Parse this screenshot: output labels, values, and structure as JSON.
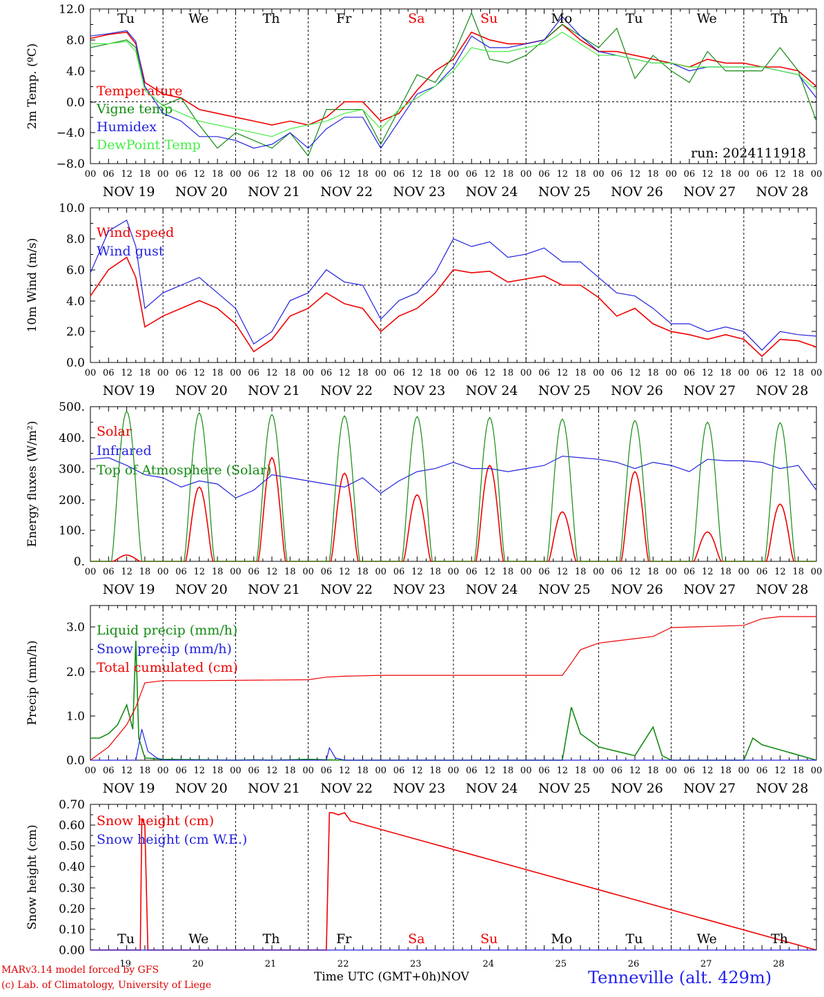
{
  "chart_data": [
    {
      "type": "line",
      "ylabel": "2m Temp. (ºC)",
      "ylim": [
        -8.0,
        12.0
      ],
      "yticks": [
        "12.0",
        "8.0",
        "4.0",
        "0.0",
        "−4.0",
        "−8.0"
      ],
      "reference_line": 0,
      "run_label": "run: 2024111918",
      "x_hours": [
        0,
        6,
        12,
        15,
        18,
        24,
        30,
        36,
        42,
        48,
        54,
        60,
        66,
        72,
        78,
        84,
        90,
        96,
        102,
        108,
        114,
        120,
        126,
        132,
        138,
        144,
        150,
        156,
        162,
        168,
        174,
        180,
        186,
        192,
        198,
        204,
        210,
        216,
        222,
        228,
        234,
        240
      ],
      "series": [
        {
          "name": "Temperature",
          "color": "#ee0000",
          "values": [
            8.2,
            8.7,
            9.0,
            7.5,
            2.5,
            1.0,
            0.5,
            -1.0,
            -1.5,
            -2.0,
            -2.5,
            -3.0,
            -2.5,
            -3.0,
            -2.0,
            0.0,
            0.0,
            -2.5,
            -1.5,
            1.5,
            4.0,
            5.5,
            9.0,
            8.0,
            7.5,
            7.5,
            8.0,
            10.0,
            8.0,
            6.5,
            6.5,
            6.0,
            5.5,
            5.0,
            4.5,
            5.5,
            5.0,
            5.0,
            4.5,
            4.5,
            4.0,
            2.0
          ]
        },
        {
          "name": "Vigne temp",
          "color": "#138a13",
          "values": [
            7.0,
            7.5,
            8.0,
            7.0,
            1.5,
            -0.5,
            0.5,
            -3.0,
            -6.0,
            -4.0,
            -5.0,
            -6.0,
            -4.0,
            -7.0,
            -1.0,
            -1.0,
            -1.0,
            -5.5,
            -1.0,
            3.5,
            2.5,
            6.0,
            11.5,
            5.5,
            5.0,
            6.0,
            8.0,
            10.0,
            8.5,
            7.0,
            9.5,
            3.0,
            6.0,
            4.0,
            2.5,
            6.5,
            4.0,
            4.0,
            4.0,
            7.0,
            4.0,
            -2.5
          ]
        },
        {
          "name": "Humidex",
          "color": "#2222dd",
          "values": [
            8.5,
            8.8,
            9.2,
            7.8,
            2.0,
            -1.5,
            -2.5,
            -4.5,
            -4.5,
            -5.0,
            -6.0,
            -5.5,
            -4.0,
            -6.0,
            -3.5,
            -2.0,
            -2.0,
            -6.0,
            -2.5,
            1.0,
            2.0,
            4.5,
            8.5,
            7.0,
            7.0,
            7.5,
            8.0,
            11.0,
            8.5,
            6.5,
            6.0,
            5.5,
            5.0,
            5.0,
            4.0,
            4.5,
            4.5,
            4.5,
            4.5,
            4.0,
            3.5,
            0.5
          ]
        },
        {
          "name": "DewPoint Temp",
          "color": "#44ee44",
          "values": [
            7.5,
            7.5,
            7.8,
            6.5,
            1.5,
            -0.5,
            -1.5,
            -2.5,
            -3.0,
            -3.5,
            -4.0,
            -4.5,
            -3.5,
            -3.0,
            -2.5,
            -1.5,
            -1.0,
            -3.5,
            -1.0,
            0.5,
            2.0,
            4.0,
            7.0,
            6.5,
            6.5,
            7.0,
            7.5,
            9.0,
            7.5,
            6.0,
            6.0,
            5.5,
            5.0,
            5.0,
            4.5,
            4.5,
            4.5,
            4.5,
            4.5,
            4.0,
            3.5,
            1.5
          ]
        }
      ]
    },
    {
      "type": "line",
      "ylabel": "10m Wind (m/s)",
      "ylim": [
        0.0,
        10.0
      ],
      "yticks": [
        "10.0",
        "8.0",
        "6.0",
        "4.0",
        "2.0",
        "0.0"
      ],
      "reference_line": 5,
      "x_hours": [
        0,
        6,
        12,
        15,
        18,
        24,
        30,
        36,
        42,
        48,
        54,
        60,
        66,
        72,
        78,
        84,
        90,
        96,
        102,
        108,
        114,
        120,
        126,
        132,
        138,
        144,
        150,
        156,
        162,
        168,
        174,
        180,
        186,
        192,
        198,
        204,
        210,
        216,
        222,
        228,
        234,
        240
      ],
      "series": [
        {
          "name": "Wind speed",
          "color": "#ee0000",
          "values": [
            4.3,
            6.0,
            6.8,
            5.5,
            2.3,
            3.0,
            3.5,
            4.0,
            3.5,
            2.5,
            0.7,
            1.5,
            3.0,
            3.5,
            4.5,
            3.8,
            3.5,
            2.0,
            3.0,
            3.5,
            4.5,
            6.0,
            5.8,
            5.9,
            5.2,
            5.4,
            5.6,
            5.0,
            5.0,
            4.2,
            3.0,
            3.5,
            2.5,
            2.0,
            1.8,
            1.5,
            1.8,
            1.5,
            0.4,
            1.5,
            1.4,
            1.0
          ]
        },
        {
          "name": "Wind gust",
          "color": "#2222dd",
          "values": [
            5.8,
            8.5,
            9.2,
            7.5,
            3.5,
            4.5,
            5.0,
            5.5,
            4.5,
            3.5,
            1.2,
            2.0,
            4.0,
            4.5,
            6.0,
            5.2,
            5.0,
            2.8,
            4.0,
            4.5,
            5.8,
            8.0,
            7.5,
            7.8,
            6.8,
            7.0,
            7.4,
            6.5,
            6.5,
            5.5,
            4.5,
            4.3,
            3.5,
            2.5,
            2.5,
            2.0,
            2.3,
            2.0,
            0.8,
            2.0,
            1.8,
            1.7
          ]
        }
      ]
    },
    {
      "type": "line",
      "ylabel": "Energy fluxes (W/m²)",
      "ylim": [
        0,
        500
      ],
      "yticks": [
        "500.",
        "400.",
        "300.",
        "200.",
        "100.",
        "0."
      ],
      "series": [
        {
          "name": "Solar",
          "color": "#ee0000",
          "peaks": [
            20,
            240,
            335,
            285,
            215,
            310,
            160,
            290,
            95,
            185
          ]
        },
        {
          "name": "Infrared",
          "color": "#2222dd",
          "x_hours": [
            0,
            6,
            12,
            18,
            24,
            30,
            36,
            42,
            48,
            54,
            60,
            66,
            72,
            78,
            84,
            90,
            96,
            102,
            108,
            114,
            120,
            126,
            132,
            138,
            144,
            150,
            156,
            162,
            168,
            174,
            180,
            186,
            192,
            198,
            204,
            210,
            216,
            222,
            228,
            234,
            240
          ],
          "values": [
            330,
            335,
            310,
            280,
            270,
            240,
            260,
            250,
            205,
            230,
            280,
            270,
            260,
            250,
            240,
            270,
            220,
            260,
            290,
            300,
            320,
            300,
            300,
            290,
            300,
            310,
            340,
            335,
            330,
            320,
            300,
            320,
            310,
            290,
            330,
            325,
            325,
            320,
            300,
            310,
            230
          ]
        },
        {
          "name": "Top of Atmosphere (Solar)",
          "color": "#138a13",
          "peaks": [
            485,
            480,
            475,
            470,
            468,
            465,
            460,
            455,
            450,
            448
          ]
        }
      ]
    },
    {
      "type": "line",
      "ylabel": "Precip (mm/h)",
      "ylim": [
        0.0,
        3.5
      ],
      "yticks": [
        "3.0",
        "2.0",
        "1.0",
        "0.0"
      ],
      "series": [
        {
          "name": "Liquid precip (mm/h)",
          "color": "#138a13",
          "x_hours": [
            0,
            3,
            6,
            9,
            12,
            14,
            15,
            16,
            18,
            24,
            48,
            54,
            60,
            66,
            72,
            78,
            84,
            96,
            120,
            144,
            156,
            159,
            162,
            168,
            174,
            180,
            186,
            189,
            192,
            216,
            219,
            222,
            240
          ],
          "values": [
            0.5,
            0.5,
            0.6,
            0.8,
            1.25,
            0.7,
            2.7,
            0.5,
            0.05,
            0.02,
            0.0,
            0.01,
            0.0,
            0.01,
            0.02,
            0.01,
            0.0,
            0.0,
            0.0,
            0.0,
            0.0,
            1.2,
            0.6,
            0.3,
            0.2,
            0.1,
            0.75,
            0.1,
            0.0,
            0.0,
            0.5,
            0.35,
            0.0
          ]
        },
        {
          "name": "Snow precip (mm/h)",
          "color": "#2222dd",
          "x_hours": [
            0,
            15,
            17,
            19,
            22,
            24,
            78,
            79,
            81,
            84,
            96,
            240
          ],
          "values": [
            0.0,
            0.0,
            0.7,
            0.2,
            0.05,
            0.0,
            0.0,
            0.28,
            0.05,
            0.0,
            0.0,
            0.0
          ]
        },
        {
          "name": "Total cumulated (cm)",
          "color": "#ee0000",
          "x_hours": [
            0,
            6,
            12,
            15,
            18,
            24,
            36,
            72,
            78,
            84,
            96,
            120,
            156,
            159,
            162,
            168,
            180,
            186,
            192,
            216,
            222,
            228,
            240
          ],
          "values": [
            0.0,
            0.3,
            0.8,
            1.2,
            1.75,
            1.8,
            1.8,
            1.82,
            1.88,
            1.9,
            1.92,
            1.92,
            1.92,
            2.2,
            2.5,
            2.65,
            2.75,
            2.8,
            3.0,
            3.05,
            3.2,
            3.25,
            3.25
          ]
        }
      ]
    },
    {
      "type": "line",
      "ylabel": "Snow height (cm)",
      "ylim": [
        0.0,
        0.7
      ],
      "yticks": [
        "0.70",
        "0.60",
        "0.50",
        "0.40",
        "0.30",
        "0.20",
        "0.10",
        "0.00"
      ],
      "series": [
        {
          "name": "Snow height (cm)",
          "color": "#ee0000",
          "x_hours": [
            0,
            16.5,
            17,
            18,
            19,
            78,
            79,
            80,
            82,
            84,
            86,
            240
          ],
          "values": [
            0,
            0,
            0.63,
            0.6,
            0,
            0,
            0.66,
            0.66,
            0.65,
            0.66,
            0.62,
            0
          ]
        },
        {
          "name": "Snow height (cm W.E.)",
          "color": "#2222dd",
          "x_hours": [
            0,
            240
          ],
          "values": [
            0,
            0
          ]
        }
      ]
    }
  ],
  "axis": {
    "day_labels": [
      "Tu",
      "We",
      "Th",
      "Fr",
      "Sa",
      "Su",
      "Mo",
      "Tu",
      "We",
      "Th"
    ],
    "day_label_colors": [
      "#000000",
      "#000000",
      "#000000",
      "#000000",
      "#ee0000",
      "#ee0000",
      "#000000",
      "#000000",
      "#000000",
      "#000000"
    ],
    "hour_ticks": [
      "00",
      "06",
      "12",
      "18"
    ],
    "date_labels": [
      "NOV 19",
      "NOV 20",
      "NOV 21",
      "NOV 22",
      "NOV 23",
      "NOV 24",
      "NOV 25",
      "NOV 26",
      "NOV 27",
      "NOV 28"
    ],
    "day_numbers": [
      "19",
      "20",
      "21",
      "22",
      "23",
      "24",
      "25",
      "26",
      "27",
      "28"
    ],
    "xlabel": "Time UTC (GMT+0h)",
    "month": "NOV"
  },
  "footer": {
    "model": "MARv3.14 model forced by GFS",
    "credit": "(c) Lab. of Climatology, University of Liege",
    "station": "Tenneville (alt. 429m)"
  }
}
